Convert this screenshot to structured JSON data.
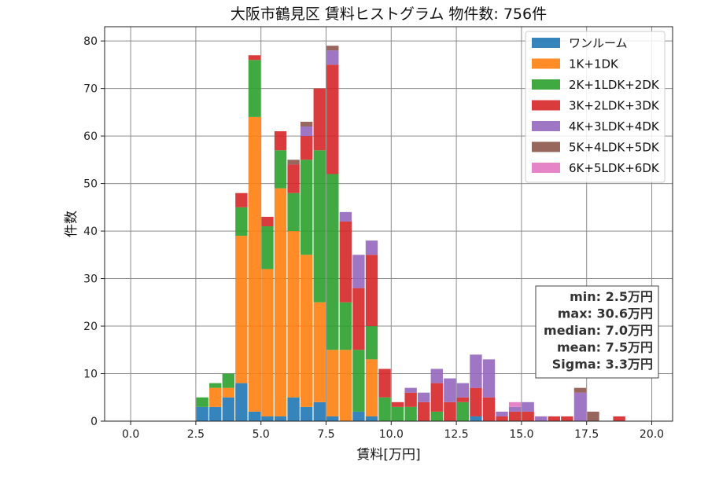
{
  "chart_data": {
    "type": "bar",
    "stacked": true,
    "title": "大阪市鶴見区 賃料ヒストグラム 物件数: 756件",
    "xlabel": "賃料[万円]",
    "ylabel": "件数",
    "xlim": [
      -1.0,
      20.8
    ],
    "ylim": [
      0,
      83
    ],
    "xticks": [
      0.0,
      2.5,
      5.0,
      7.5,
      10.0,
      12.5,
      15.0,
      17.5,
      20.0
    ],
    "xtick_labels": [
      "0.0",
      "2.5",
      "5.0",
      "7.5",
      "10.0",
      "12.5",
      "15.0",
      "17.5",
      "20.0"
    ],
    "yticks": [
      0,
      10,
      20,
      30,
      40,
      50,
      60,
      70,
      80
    ],
    "ytick_labels": [
      "0",
      "10",
      "20",
      "30",
      "40",
      "50",
      "60",
      "70",
      "80"
    ],
    "grid": true,
    "legend_position": "top-right",
    "bin_width": 0.5,
    "x": [
      2.5,
      3.0,
      3.5,
      4.0,
      4.5,
      5.0,
      5.5,
      6.0,
      6.5,
      7.0,
      7.5,
      8.0,
      8.5,
      9.0,
      9.5,
      10.0,
      10.5,
      11.0,
      11.5,
      12.0,
      12.5,
      13.0,
      13.5,
      14.0,
      14.5,
      15.0,
      15.5,
      16.0,
      16.5,
      17.0,
      17.5,
      18.0,
      18.5
    ],
    "series": [
      {
        "name": "ワンルーム",
        "color": "#1f77b4",
        "values": [
          3,
          3,
          5,
          8,
          2,
          1,
          1,
          5,
          3,
          4,
          1,
          0,
          2,
          1,
          0,
          0,
          0,
          0,
          0,
          0,
          0,
          1,
          0,
          0,
          0,
          0,
          0,
          0,
          0,
          0,
          0,
          0,
          0
        ]
      },
      {
        "name": "1K+1DK",
        "color": "#ff7f0e",
        "values": [
          0,
          4,
          2,
          31,
          62,
          31,
          48,
          35,
          32,
          21,
          14,
          15,
          0,
          12,
          0,
          0,
          0,
          0,
          0,
          0,
          0,
          0,
          0,
          0,
          0,
          0,
          0,
          0,
          0,
          0,
          0,
          0,
          0
        ]
      },
      {
        "name": "2K+1LDK+2DK",
        "color": "#2ca02c",
        "values": [
          2,
          1,
          3,
          6,
          12,
          9,
          8,
          8,
          20,
          32,
          37,
          10,
          13,
          7,
          5,
          3,
          3,
          0,
          2,
          0,
          4,
          0,
          0,
          0,
          0,
          0,
          0,
          0,
          0,
          0,
          0,
          0,
          0
        ]
      },
      {
        "name": "3K+2LDK+3DK",
        "color": "#d62728",
        "values": [
          0,
          0,
          0,
          3,
          1,
          2,
          4,
          6,
          5,
          13,
          23,
          17,
          13,
          15,
          6,
          1,
          3,
          4,
          6,
          4,
          1,
          6,
          5,
          1,
          2,
          2,
          0,
          1,
          1,
          0,
          0,
          0,
          1
        ]
      },
      {
        "name": "4K+3LDK+4DK",
        "color": "#9467bd",
        "values": [
          0,
          0,
          0,
          0,
          0,
          0,
          0,
          0,
          2,
          0,
          3,
          2,
          7,
          3,
          0,
          0,
          1,
          2,
          3,
          5,
          3,
          7,
          8,
          1,
          1,
          2,
          1,
          0,
          0,
          6,
          0,
          0,
          0
        ]
      },
      {
        "name": "5K+4LDK+5DK",
        "color": "#8c564b",
        "values": [
          0,
          0,
          0,
          0,
          0,
          0,
          0,
          1,
          1,
          0,
          1,
          0,
          0,
          0,
          0,
          0,
          0,
          0,
          0,
          0,
          0,
          0,
          0,
          0,
          0,
          0,
          0,
          0,
          0,
          1,
          2,
          0,
          0
        ]
      },
      {
        "name": "6K+5LDK+6DK",
        "color": "#e377c2",
        "values": [
          0,
          0,
          0,
          0,
          0,
          0,
          0,
          0,
          0,
          0,
          0,
          0,
          0,
          0,
          0,
          0,
          0,
          0,
          0,
          0,
          0,
          0,
          0,
          0,
          1,
          0,
          0,
          0,
          0,
          0,
          0,
          0,
          0
        ]
      }
    ],
    "stats": [
      "min: 2.5万円",
      "max: 30.6万円",
      "median: 7.0万円",
      "mean: 7.5万円",
      "Sigma: 3.3万円"
    ]
  }
}
